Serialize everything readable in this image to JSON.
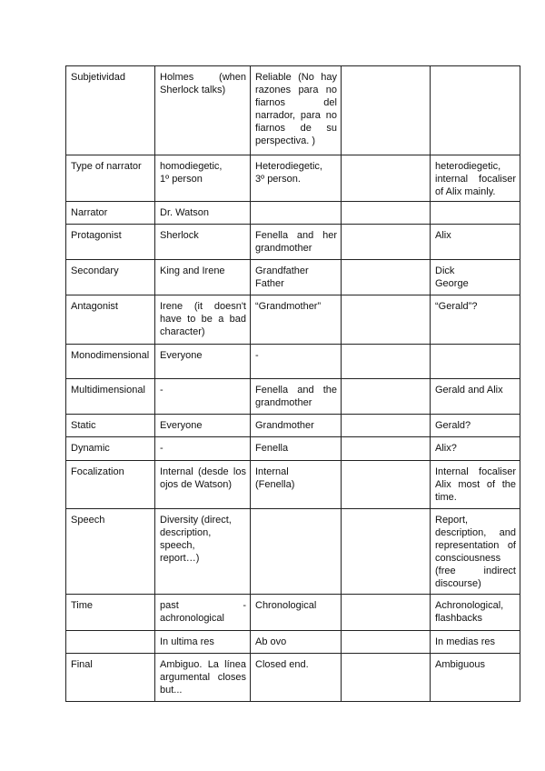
{
  "rows": [
    {
      "label": "Subjetividad",
      "c1": "Holmes (when Sherlock talks)",
      "c2": "Reliable (No hay razones para no fiarnos del narrador, para no fiarnos de su perspectiva. )",
      "c3": "",
      "c4": ""
    },
    {
      "label": "Type of narrator",
      "c1": "homodiegetic,\n1º person",
      "c2": "Heterodiegetic,\n3º person.",
      "c3": "",
      "c4": "heterodiegetic,\ninternal focaliser of Alix mainly."
    },
    {
      "label": "Narrator",
      "c1": "Dr. Watson",
      "c2": "",
      "c3": "",
      "c4": ""
    },
    {
      "label": "Protagonist",
      "c1": "Sherlock",
      "c2": "Fenella and her grandmother",
      "c3": "",
      "c4": "Alix"
    },
    {
      "label": "Secondary",
      "c1": "King and Irene",
      "c2": "Grandfather\nFather",
      "c3": "",
      "c4": "Dick\nGeorge"
    },
    {
      "label": "Antagonist",
      "c1": "Irene (it doesn't have to be a bad character)",
      "c2": "“Grandmother”",
      "c3": "",
      "c4": "“Gerald”?"
    },
    {
      "label": "Monodimensional",
      "c1": "Everyone",
      "c2": "-",
      "c3": "",
      "c4": ""
    },
    {
      "label": "Multidimensional",
      "c1": "-",
      "c2": "Fenella and the grandmother",
      "c3": "",
      "c4": "Gerald and Alix"
    },
    {
      "label": "Static",
      "c1": "Everyone",
      "c2": "Grandmother",
      "c3": "",
      "c4": "Gerald?"
    },
    {
      "label": "Dynamic",
      "c1": "-",
      "c2": "Fenella",
      "c3": "",
      "c4": "Alix?"
    },
    {
      "label": "Focalization",
      "c1": "Internal (desde los ojos de Watson)",
      "c2": "Internal\n(Fenella)",
      "c3": "",
      "c4": "Internal focaliser Alix most of the time."
    },
    {
      "label": "Speech",
      "c1": "Diversity (direct,\ndescription,\nspeech,\nreport…)",
      "c2": "",
      "c3": "",
      "c4": "Report,\ndescription, and representation of consciousness\n(free indirect discourse)"
    },
    {
      "label": "Time",
      "c1": "past - achronological",
      "c2": "Chronological",
      "c3": "",
      "c4": "Achronological,\nflashbacks"
    },
    {
      "label": "",
      "c1": "In ultima res",
      "c2": "Ab ovo",
      "c3": "",
      "c4": "In medias res"
    },
    {
      "label": "Final",
      "c1": "Ambiguo. La línea argumental closes but...",
      "c2": "Closed end.",
      "c3": "",
      "c4": "Ambiguous"
    }
  ]
}
